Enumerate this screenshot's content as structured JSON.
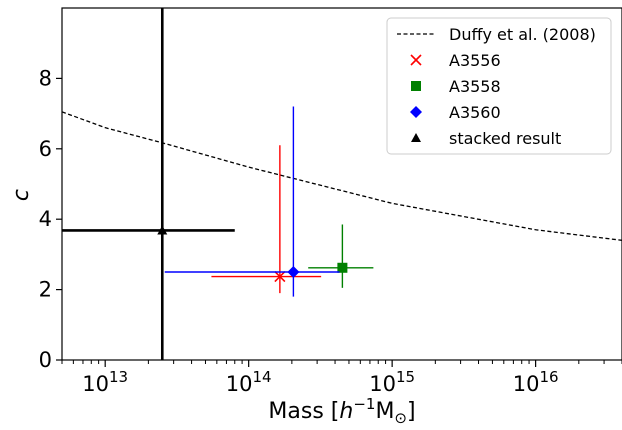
{
  "chart_data": {
    "type": "scatter",
    "xscale": "log",
    "xlim": [
      5000000000000.0,
      4e+16
    ],
    "ylim": [
      0,
      10
    ],
    "xlabel": {
      "prefix": "Mass [",
      "h": "h",
      "sup": "−1",
      "m": "M",
      "sub": "⊙",
      "suffix": "]"
    },
    "ylabel": "c",
    "x_major_ticks": [
      {
        "value": 10000000000000.0,
        "base": "10",
        "exp": "13"
      },
      {
        "value": 100000000000000.0,
        "base": "10",
        "exp": "14"
      },
      {
        "value": 1000000000000000.0,
        "base": "10",
        "exp": "15"
      },
      {
        "value": 1e+16,
        "base": "10",
        "exp": "16"
      }
    ],
    "y_ticks": [
      "0",
      "2",
      "4",
      "6",
      "8"
    ],
    "grid": false,
    "legend_position": "top-right",
    "series": [
      {
        "name": "Duffy et al. (2008)",
        "kind": "line",
        "color": "#000000",
        "x": [
          5000000000000.0,
          10000000000000.0,
          25000000000000.0,
          100000000000000.0,
          1000000000000000.0,
          1e+16,
          4e+16
        ],
        "y": [
          7.05,
          6.6,
          6.17,
          5.48,
          4.45,
          3.7,
          3.4
        ]
      },
      {
        "name": "A3556",
        "kind": "point",
        "marker": "x",
        "color": "#ff0000",
        "x": 165000000000000.0,
        "y": 2.37,
        "xerr": [
          55000000000000.0,
          320000000000000.0
        ],
        "yerr": [
          1.9,
          6.1
        ]
      },
      {
        "name": "A3558",
        "kind": "point",
        "marker": "square",
        "color": "#008000",
        "x": 450000000000000.0,
        "y": 2.62,
        "xerr": [
          260000000000000.0,
          740000000000000.0
        ],
        "yerr": [
          2.05,
          3.85
        ]
      },
      {
        "name": "A3560",
        "kind": "point",
        "marker": "diamond",
        "color": "#0000ff",
        "x": 205000000000000.0,
        "y": 2.5,
        "xerr": [
          26000000000000.0,
          430000000000000.0
        ],
        "yerr": [
          1.8,
          7.2
        ]
      },
      {
        "name": "stacked result",
        "kind": "point",
        "marker": "triangle",
        "color": "#000000",
        "x": 25000000000000.0,
        "y": 3.68,
        "xerr": [
          5000000000000.0,
          80000000000000.0
        ],
        "yerr": [
          0,
          10
        ]
      }
    ]
  }
}
